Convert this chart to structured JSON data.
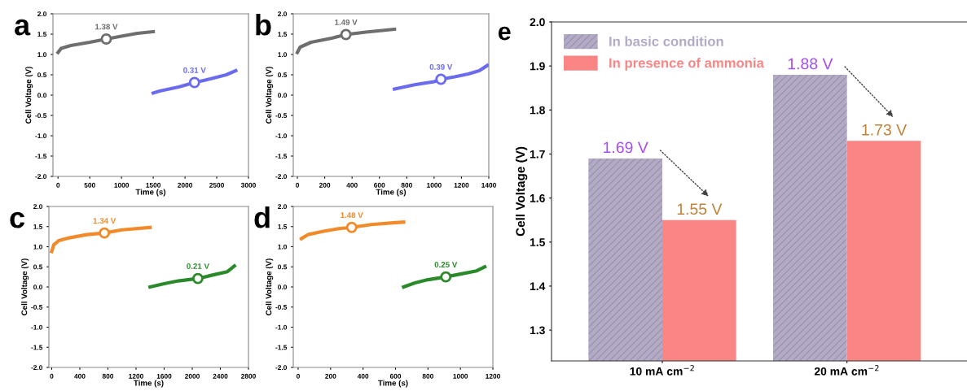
{
  "chart_data": [
    {
      "type": "line",
      "title": "a",
      "xlabel": "Time (s)",
      "ylabel": "Cell Voltage (V)",
      "xlim": [
        -80,
        3000
      ],
      "xticks": [
        0,
        500,
        1000,
        1500,
        2000,
        2500,
        3000
      ],
      "ylim": [
        -2.0,
        2.0
      ],
      "yticks": [
        {
          "value": -2,
          "label": "-2.0"
        },
        -1.5,
        {
          "value": -1,
          "label": "-1.0"
        },
        -0.5,
        {
          "value": 0,
          "label": "0.0"
        },
        0.5,
        {
          "value": 1,
          "label": "1.0"
        },
        1.5,
        {
          "value": 2,
          "label": "2.0"
        }
      ],
      "grid": false,
      "marker": "none",
      "line_style": "solid",
      "series": [
        {
          "color": "#6e6e6e",
          "x": [
            0,
            50,
            200,
            500,
            760,
            1000,
            1250,
            1500
          ],
          "values": [
            1.05,
            1.15,
            1.22,
            1.3,
            1.38,
            1.45,
            1.52,
            1.56
          ]
        },
        {
          "color": "#6b6bf0",
          "x": [
            1500,
            1600,
            1900,
            2150,
            2400,
            2650,
            2800
          ],
          "values": [
            0.05,
            0.1,
            0.2,
            0.31,
            0.4,
            0.5,
            0.6
          ]
        }
      ],
      "annotations": [
        {
          "text": "1.38 V",
          "x": 760,
          "y": 1.38
        },
        {
          "text": "0.31 V",
          "x": 2150,
          "y": 0.31
        }
      ]
    },
    {
      "type": "line",
      "title": "b",
      "xlabel": "Time (s)",
      "ylabel": "Cell Voltage (V)",
      "xlim": [
        -30,
        1400
      ],
      "xticks": [
        0,
        200,
        400,
        600,
        800,
        1000,
        1200,
        1400
      ],
      "ylim": [
        -2.0,
        2.0
      ],
      "yticks": [
        {
          "value": -2,
          "label": "-2.0"
        },
        -1.5,
        {
          "value": -1,
          "label": "-1.0"
        },
        -0.5,
        {
          "value": 0,
          "label": "0.0"
        },
        0.5,
        {
          "value": 1,
          "label": "1.0"
        },
        1.5,
        {
          "value": 2,
          "label": "2.0"
        }
      ],
      "grid": false,
      "marker": "none",
      "line_style": "solid",
      "series": [
        {
          "color": "#6e6e6e",
          "x": [
            0,
            20,
            100,
            250,
            355,
            500,
            650,
            710
          ],
          "values": [
            1.05,
            1.18,
            1.3,
            1.4,
            1.49,
            1.55,
            1.6,
            1.62
          ]
        },
        {
          "color": "#6b6bf0",
          "x": [
            710,
            850,
            1000,
            1050,
            1150,
            1250,
            1330,
            1390
          ],
          "values": [
            0.15,
            0.25,
            0.33,
            0.39,
            0.45,
            0.52,
            0.6,
            0.73
          ]
        }
      ],
      "annotations": [
        {
          "text": "1.49 V",
          "x": 355,
          "y": 1.49
        },
        {
          "text": "0.39 V",
          "x": 1050,
          "y": 0.39
        }
      ]
    },
    {
      "type": "line",
      "title": "c",
      "xlabel": "Time (s)",
      "ylabel": "Cell Voltage (V)",
      "xlim": [
        -40,
        2800
      ],
      "xticks": [
        0,
        400,
        800,
        1200,
        1600,
        2000,
        2400,
        2800
      ],
      "ylim": [
        -2.0,
        2.0
      ],
      "yticks": [
        {
          "value": -2,
          "label": "-2.0"
        },
        -1.5,
        {
          "value": -1,
          "label": "-1.0"
        },
        -0.5,
        {
          "value": 0,
          "label": "0.0"
        },
        0.5,
        {
          "value": 1,
          "label": "1.0"
        },
        1.5,
        {
          "value": 2,
          "label": "2.0"
        }
      ],
      "grid": false,
      "marker": "none",
      "line_style": "solid",
      "series": [
        {
          "color": "#f28a2a",
          "x": [
            0,
            30,
            100,
            250,
            500,
            750,
            1000,
            1400
          ],
          "values": [
            0.88,
            1.05,
            1.15,
            1.22,
            1.3,
            1.34,
            1.42,
            1.48
          ]
        },
        {
          "color": "#2a8a2a",
          "x": [
            1400,
            1600,
            1800,
            2080,
            2300,
            2500,
            2600
          ],
          "values": [
            0.0,
            0.08,
            0.15,
            0.21,
            0.3,
            0.38,
            0.52
          ]
        }
      ],
      "annotations": [
        {
          "text": "1.34 V",
          "x": 750,
          "y": 1.34
        },
        {
          "text": "0.21 V",
          "x": 2080,
          "y": 0.21
        }
      ]
    },
    {
      "type": "line",
      "title": "d",
      "xlabel": "Time (s)",
      "ylabel": "Cell Voltage (V)",
      "xlim": [
        -30,
        1200
      ],
      "xticks": [
        0,
        200,
        400,
        600,
        800,
        1000,
        1200
      ],
      "ylim": [
        -2.0,
        2.0
      ],
      "yticks": [
        {
          "value": -2,
          "label": "-2.0"
        },
        -1.5,
        {
          "value": -1,
          "label": "-1.0"
        },
        -0.5,
        {
          "value": 0,
          "label": "0.0"
        },
        0.5,
        {
          "value": 1,
          "label": "1.0"
        },
        1.5,
        {
          "value": 2,
          "label": "2.0"
        }
      ],
      "grid": false,
      "marker": "none",
      "line_style": "solid",
      "series": [
        {
          "color": "#f28a2a",
          "x": [
            20,
            60,
            150,
            250,
            330,
            450,
            600,
            650
          ],
          "values": [
            1.2,
            1.3,
            1.38,
            1.45,
            1.48,
            1.55,
            1.6,
            1.61
          ]
        },
        {
          "color": "#2a8a2a",
          "x": [
            650,
            720,
            800,
            910,
            1000,
            1100,
            1150
          ],
          "values": [
            0.0,
            0.1,
            0.18,
            0.25,
            0.32,
            0.4,
            0.5
          ]
        }
      ],
      "annotations": [
        {
          "text": "1.48 V",
          "x": 330,
          "y": 1.48
        },
        {
          "text": "0.25 V",
          "x": 910,
          "y": 0.25
        }
      ]
    },
    {
      "type": "bar",
      "title": "e",
      "ylabel": "Cell Voltage (V)",
      "categories": [
        "10 mA cm$^{−2}$",
        "20 mA cm$^{−2}$"
      ],
      "ylim": [
        1.23,
        2.0
      ],
      "yticks": [
        1.3,
        1.4,
        1.5,
        1.6,
        1.7,
        1.8,
        1.9,
        {
          "value": 2,
          "label": "2.0"
        }
      ],
      "grid": false,
      "legend": "top left",
      "data_labels": true,
      "series": [
        {
          "name": "In basic condition",
          "color": "#b3aac6",
          "values": [
            1.69,
            1.88
          ],
          "value_labels": [
            "1.69 V",
            "1.88 V"
          ]
        },
        {
          "name": "In presence of ammonia",
          "color": "#f98585",
          "values": [
            1.55,
            1.73
          ],
          "value_labels": [
            "1.55 V",
            "1.73 V"
          ]
        }
      ]
    }
  ]
}
